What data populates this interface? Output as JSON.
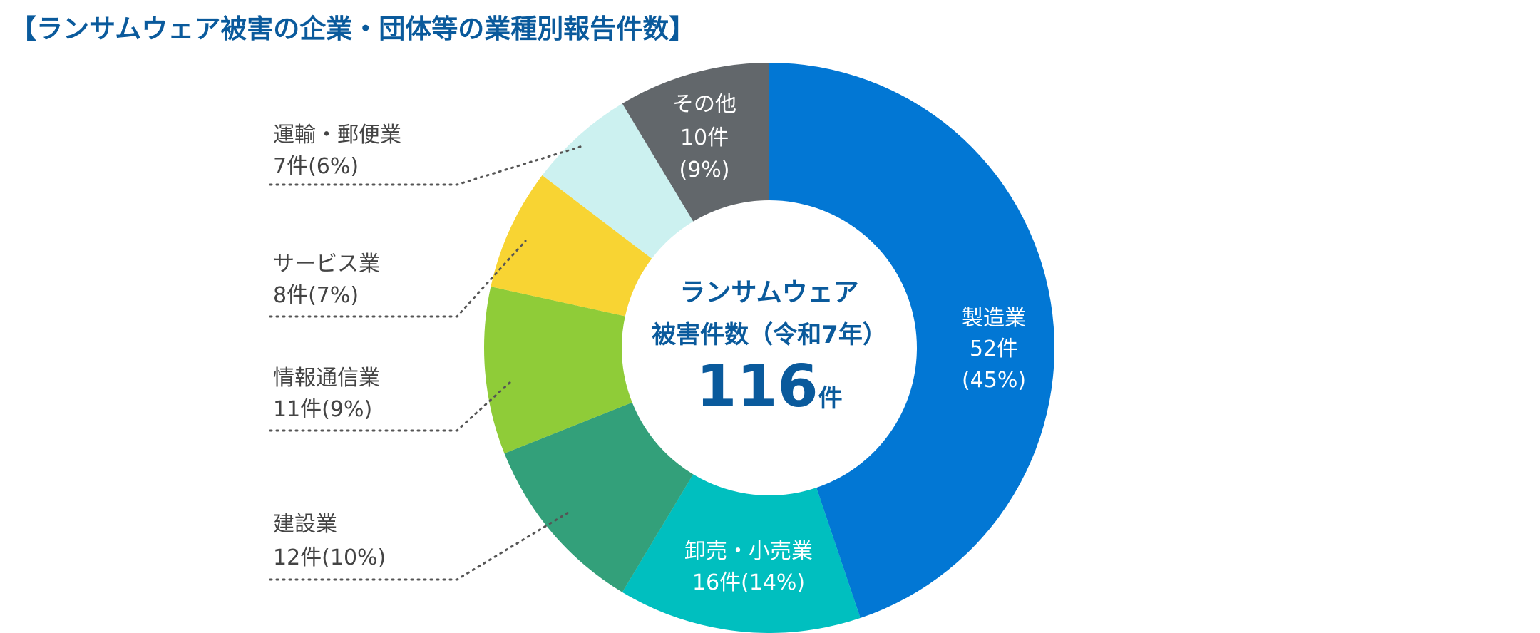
{
  "chart_data": {
    "type": "pie",
    "variant": "donut",
    "title": "【ランサムウェア被害の企業・団体等の業種別報告件数】",
    "center": {
      "line1": "ランサムウェア",
      "line2": "被害件数（令和7年）",
      "total": "116",
      "unit": "件"
    },
    "total": 116,
    "slices": [
      {
        "name": "製造業",
        "value": 52,
        "count_label": "52件",
        "percent_label": "(45%)",
        "color": "#0277d4"
      },
      {
        "name": "卸売・小売業",
        "value": 16,
        "count_label": "16件(14%)",
        "color": "#00bfbf"
      },
      {
        "name": "建設業",
        "value": 12,
        "count_label": "12件(10%)",
        "color": "#33a07a"
      },
      {
        "name": "情報通信業",
        "value": 11,
        "count_label": "11件(9%)",
        "color": "#8fcc38"
      },
      {
        "name": "サービス業",
        "value": 8,
        "count_label": "8件(7%)",
        "color": "#f8d433"
      },
      {
        "name": "運輸・郵便業",
        "value": 7,
        "count_label": "7件(6%)",
        "color": "#ccf1f0"
      },
      {
        "name": "その他",
        "value": 10,
        "count_label": "10件",
        "percent_label": "(9%)",
        "color": "#62676b"
      }
    ]
  }
}
